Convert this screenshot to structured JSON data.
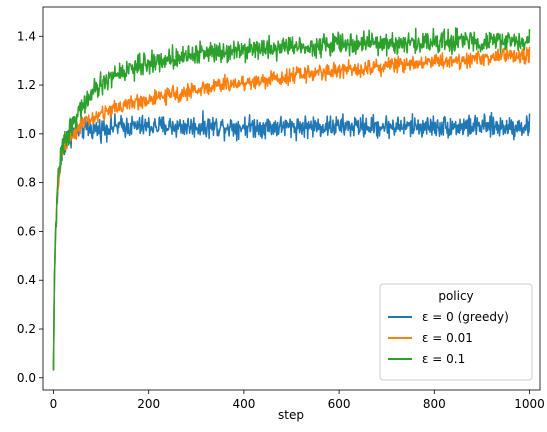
{
  "chart_data": {
    "type": "line",
    "xlabel": "step",
    "ylabel": "",
    "title": "",
    "xlim": [
      -22,
      1022
    ],
    "ylim": [
      -0.05,
      1.52
    ],
    "xticks": [
      0,
      200,
      400,
      600,
      800,
      1000
    ],
    "yticks": [
      0.0,
      0.2,
      0.4,
      0.6,
      0.8,
      1.0,
      1.2,
      1.4
    ],
    "xtick_labels": [
      "0",
      "200",
      "400",
      "600",
      "800",
      "1000"
    ],
    "ytick_labels": [
      "0.0",
      "0.2",
      "0.4",
      "0.6",
      "0.8",
      "1.0",
      "1.2",
      "1.4"
    ],
    "grid": false,
    "legend": {
      "title": "policy",
      "position": "lower-right"
    },
    "series": [
      {
        "name": "ε = 0 (greedy)",
        "color": "#1f77b4",
        "x": [
          0,
          2,
          5,
          10,
          15,
          20,
          25,
          30,
          40,
          50,
          60,
          70,
          80,
          100,
          120,
          150,
          200,
          250,
          300,
          350,
          400,
          450,
          500,
          550,
          600,
          650,
          700,
          750,
          800,
          850,
          900,
          950,
          1000
        ],
        "y": [
          0.03,
          0.4,
          0.62,
          0.8,
          0.88,
          0.93,
          0.96,
          0.98,
          1.0,
          1.01,
          1.02,
          1.02,
          1.02,
          1.02,
          1.03,
          1.03,
          1.03,
          1.03,
          1.03,
          1.03,
          1.03,
          1.03,
          1.03,
          1.03,
          1.03,
          1.03,
          1.03,
          1.03,
          1.03,
          1.03,
          1.03,
          1.03,
          1.03
        ],
        "noise": 0.022
      },
      {
        "name": "ε = 0.01",
        "color": "#ff7f0e",
        "x": [
          0,
          2,
          5,
          10,
          15,
          20,
          25,
          30,
          40,
          50,
          60,
          80,
          100,
          120,
          150,
          200,
          250,
          300,
          350,
          400,
          450,
          500,
          550,
          600,
          650,
          700,
          750,
          800,
          850,
          900,
          950,
          1000
        ],
        "y": [
          0.03,
          0.4,
          0.62,
          0.8,
          0.88,
          0.93,
          0.96,
          0.98,
          1.0,
          1.02,
          1.04,
          1.06,
          1.08,
          1.1,
          1.12,
          1.14,
          1.16,
          1.18,
          1.2,
          1.21,
          1.22,
          1.24,
          1.25,
          1.26,
          1.27,
          1.28,
          1.29,
          1.3,
          1.3,
          1.31,
          1.32,
          1.32
        ],
        "noise": 0.016
      },
      {
        "name": "ε = 0.1",
        "color": "#2ca02c",
        "x": [
          0,
          2,
          5,
          10,
          15,
          20,
          25,
          30,
          40,
          50,
          60,
          80,
          100,
          120,
          150,
          200,
          250,
          300,
          350,
          400,
          450,
          500,
          550,
          600,
          650,
          700,
          750,
          800,
          850,
          900,
          950,
          1000
        ],
        "y": [
          0.03,
          0.42,
          0.64,
          0.82,
          0.9,
          0.95,
          0.98,
          1.0,
          1.04,
          1.08,
          1.11,
          1.16,
          1.2,
          1.23,
          1.26,
          1.29,
          1.31,
          1.33,
          1.34,
          1.35,
          1.35,
          1.36,
          1.36,
          1.37,
          1.37,
          1.37,
          1.37,
          1.38,
          1.38,
          1.38,
          1.38,
          1.38
        ],
        "noise": 0.022
      }
    ]
  }
}
